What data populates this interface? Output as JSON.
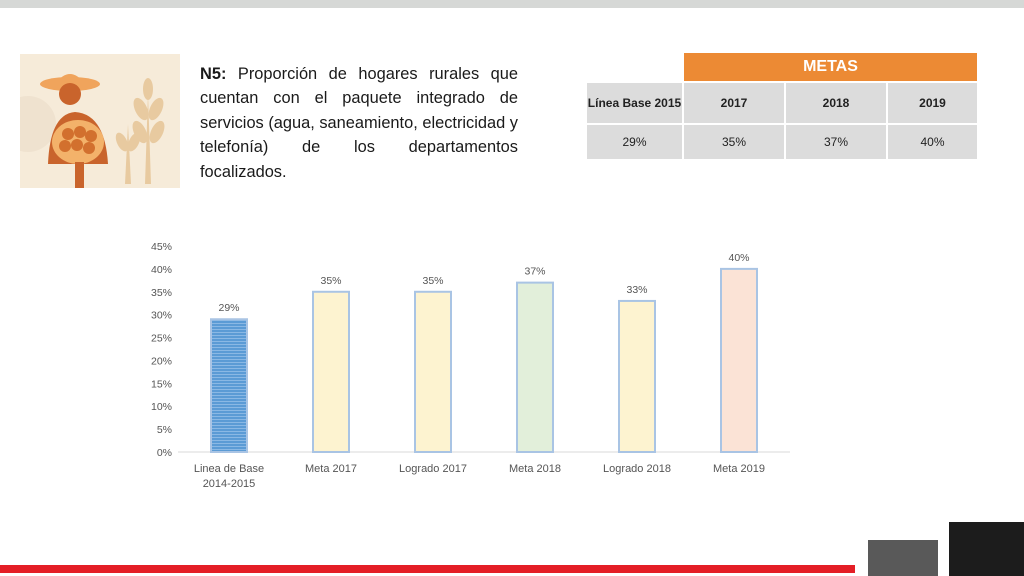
{
  "heading": {
    "code": "N5:",
    "text": "Proporción de hogares rurales que cuentan con el paquete integrado de servicios (agua, saneamiento, electricidad y telefonía) de los departamentos focalizados."
  },
  "metas_table": {
    "title": "METAS",
    "columns": [
      "Línea Base 2015",
      "2017",
      "2018",
      "2019"
    ],
    "values": [
      "29%",
      "35%",
      "37%",
      "40%"
    ]
  },
  "colors": {
    "metas_header": "#ec8a34",
    "accent_red": "#e41e26"
  },
  "chart_data": {
    "type": "bar",
    "categories": [
      [
        "Linea de Base",
        "2014-2015"
      ],
      [
        "Meta 2017"
      ],
      [
        "Logrado 2017"
      ],
      [
        "Meta 2018"
      ],
      [
        "Logrado 2018"
      ],
      [
        "Meta 2019"
      ]
    ],
    "values": [
      29,
      35,
      35,
      37,
      33,
      40
    ],
    "data_labels": [
      "29%",
      "35%",
      "35%",
      "37%",
      "33%",
      "40%"
    ],
    "bar_colors": [
      "#5b9bd5",
      "#fdf3d0",
      "#fdf3d0",
      "#e2efda",
      "#fdf3d0",
      "#fbe3d6"
    ],
    "y_ticks": [
      "0%",
      "5%",
      "10%",
      "15%",
      "20%",
      "25%",
      "30%",
      "35%",
      "40%",
      "45%"
    ],
    "ylim": [
      0,
      45
    ],
    "grid": false,
    "title": "",
    "xlabel": "",
    "ylabel": ""
  }
}
